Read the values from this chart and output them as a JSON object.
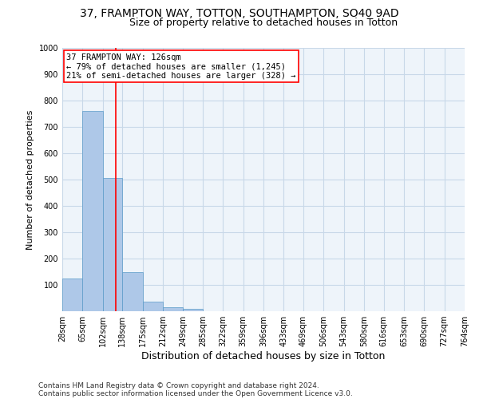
{
  "title": "37, FRAMPTON WAY, TOTTON, SOUTHAMPTON, SO40 9AD",
  "subtitle": "Size of property relative to detached houses in Totton",
  "xlabel": "Distribution of detached houses by size in Totton",
  "ylabel": "Number of detached properties",
  "bin_edges": [
    28,
    65,
    102,
    138,
    175,
    212,
    249,
    285,
    322,
    359,
    396,
    433,
    469,
    506,
    543,
    580,
    616,
    653,
    690,
    727,
    764
  ],
  "bar_heights": [
    125,
    760,
    505,
    150,
    37,
    15,
    8,
    0,
    0,
    0,
    0,
    0,
    0,
    0,
    0,
    0,
    0,
    0,
    0,
    0
  ],
  "bar_color": "#aec8e8",
  "bar_edgecolor": "#5a9ac8",
  "grid_color": "#c8d8e8",
  "bg_color": "#eef4fa",
  "vline_x": 126,
  "vline_color": "red",
  "annotation_title": "37 FRAMPTON WAY: 126sqm",
  "annotation_line1": "← 79% of detached houses are smaller (1,245)",
  "annotation_line2": "21% of semi-detached houses are larger (328) →",
  "annotation_box_color": "white",
  "annotation_box_edgecolor": "red",
  "ylim": [
    0,
    1000
  ],
  "yticks": [
    0,
    100,
    200,
    300,
    400,
    500,
    600,
    700,
    800,
    900,
    1000
  ],
  "footnote1": "Contains HM Land Registry data © Crown copyright and database right 2024.",
  "footnote2": "Contains public sector information licensed under the Open Government Licence v3.0.",
  "title_fontsize": 10,
  "subtitle_fontsize": 9,
  "xlabel_fontsize": 9,
  "ylabel_fontsize": 8,
  "tick_fontsize": 7,
  "annot_fontsize": 7.5,
  "footnote_fontsize": 6.5
}
